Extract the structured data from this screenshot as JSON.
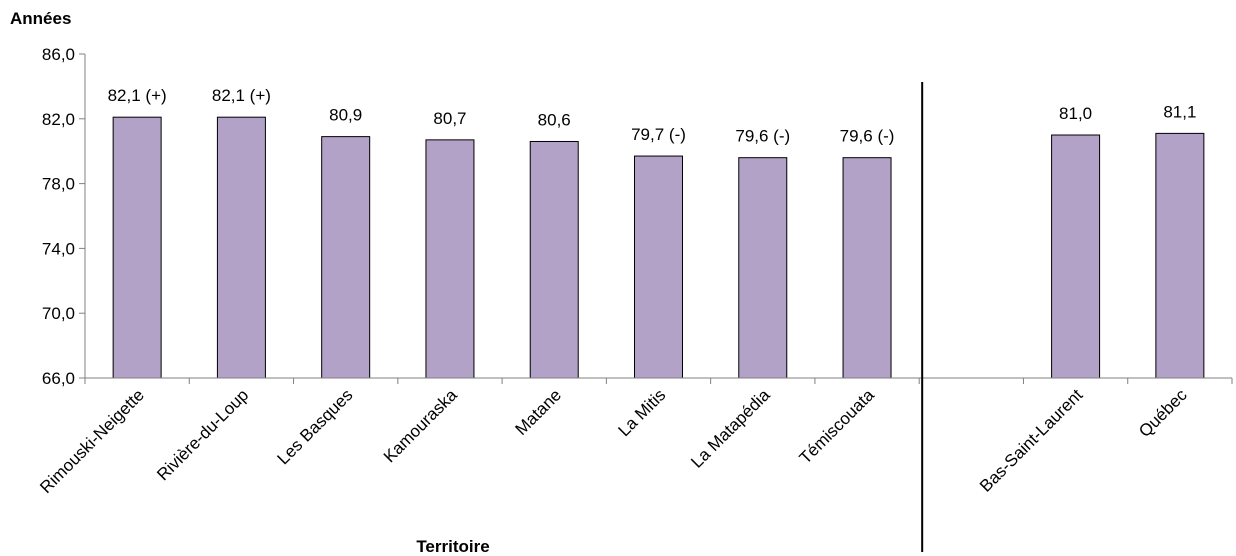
{
  "chart_data": {
    "type": "bar",
    "ylabel": "Années",
    "xlabel": "Territoire",
    "ylim": [
      66.0,
      86.0
    ],
    "yticks": [
      "66,0",
      "70,0",
      "74,0",
      "78,0",
      "82,0",
      "86,0"
    ],
    "ytick_values": [
      66,
      70,
      74,
      78,
      82,
      86
    ],
    "grid": false,
    "legend": "none",
    "bar_color": "#b3a2c7",
    "categories": [
      "Rimouski-Neigette",
      "Rivière-du-Loup",
      "Les Basques",
      "Kamouraska",
      "Matane",
      "La Mitis",
      "La Matapédia",
      "Témiscouata",
      "",
      "Bas-Saint-Laurent",
      "Québec"
    ],
    "values": [
      82.1,
      82.1,
      80.9,
      80.7,
      80.6,
      79.7,
      79.6,
      79.6,
      null,
      81.0,
      81.1
    ],
    "data_labels": [
      "82,1 (+)",
      "82,1 (+)",
      "80,9",
      "80,7",
      "80,6",
      "79,7 (-)",
      "79,6 (-)",
      "79,6 (-)",
      "",
      "81,0",
      "81,1"
    ],
    "separator_after_index": 7
  }
}
